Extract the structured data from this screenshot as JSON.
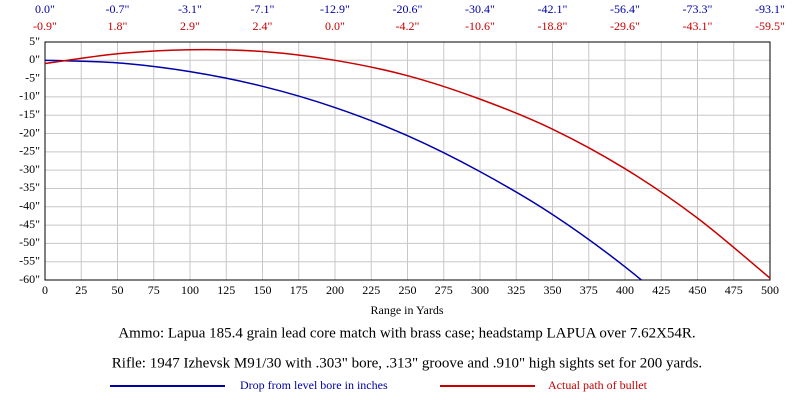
{
  "chart_data": {
    "type": "line",
    "xlabel": "Range in Yards",
    "notes": [
      "Ammo:  Lapua 185.4 grain lead core match with brass case; headstamp LAPUA over 7.62X54R.",
      "Rifle:  1947 Izhevsk M91/30 with .303\" bore, .313\" groove and .910\" high sights set for 200 yards."
    ],
    "x": [
      0,
      50,
      100,
      150,
      200,
      250,
      300,
      350,
      400,
      450,
      500
    ],
    "series": [
      {
        "name": "Drop from level bore in inches",
        "color": "#0000a8",
        "values": [
          0.0,
          -0.7,
          -3.1,
          -7.1,
          -12.9,
          -20.6,
          -30.4,
          -42.1,
          -56.4,
          -73.3,
          -93.1
        ],
        "value_labels": [
          "0.0\"",
          "-0.7\"",
          "-3.1\"",
          "-7.1\"",
          "-12.9\"",
          "-20.6\"",
          "-30.4\"",
          "-42.1\"",
          "-56.4\"",
          "-73.3\"",
          "-93.1\""
        ]
      },
      {
        "name": "Actual path of bullet",
        "color": "#c80000",
        "values": [
          -0.9,
          1.8,
          2.9,
          2.4,
          0.0,
          -4.2,
          -10.6,
          -18.8,
          -29.6,
          -43.1,
          -59.5
        ],
        "value_labels": [
          "-0.9\"",
          "1.8\"",
          "2.9\"",
          "2.4\"",
          "0.0\"",
          "-4.2\"",
          "-10.6\"",
          "-18.8\"",
          "-29.6\"",
          "-43.1\"",
          "-59.5\""
        ]
      }
    ],
    "xlim": [
      0,
      500
    ],
    "xticks": [
      0,
      25,
      50,
      75,
      100,
      125,
      150,
      175,
      200,
      225,
      250,
      275,
      300,
      325,
      350,
      375,
      400,
      425,
      450,
      475,
      500
    ],
    "ylim": [
      -60,
      5
    ],
    "yticks": [
      {
        "value": 5,
        "label": "5\""
      },
      {
        "value": 0,
        "label": "0\""
      },
      {
        "value": -5,
        "label": "-5\""
      },
      {
        "value": -10,
        "label": "-10\""
      },
      {
        "value": -15,
        "label": "-15\""
      },
      {
        "value": -20,
        "label": "-20\""
      },
      {
        "value": -25,
        "label": "-25\""
      },
      {
        "value": -30,
        "label": "-30\""
      },
      {
        "value": -35,
        "label": "-35\""
      },
      {
        "value": -40,
        "label": "-40\""
      },
      {
        "value": -45,
        "label": "-45\""
      },
      {
        "value": -50,
        "label": "-50\""
      },
      {
        "value": -55,
        "label": "-55\""
      },
      {
        "value": -60,
        "label": "-60\""
      }
    ],
    "grid": true
  }
}
